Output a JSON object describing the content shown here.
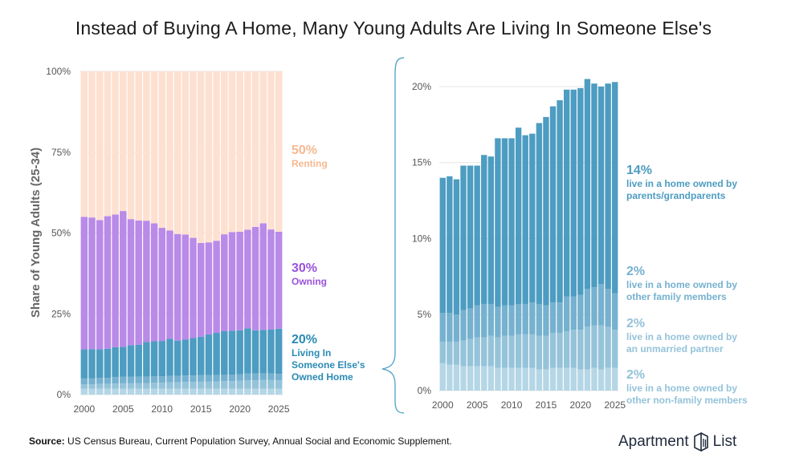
{
  "title": "Instead of Buying A Home, Many Young Adults Are Living In Someone Else's",
  "source_label": "Source:",
  "source_text": "US Census Bureau, Current Population Survey, Annual Social and Economic Supplement.",
  "brand": {
    "word1": "Apartment",
    "word2": "List"
  },
  "colors": {
    "renting": "#fde0d0",
    "owning": "#b98ae8",
    "parents": "#4d9cc1",
    "other_family": "#76b1cf",
    "partner": "#95c3da",
    "nonfamily": "#b5d6e6",
    "text_blue": "#2b8bb5",
    "text_purple": "#9a52dc",
    "text_peach": "#f6b890",
    "bracket": "#5aa6c7"
  },
  "chart_data": [
    {
      "type": "bar",
      "stacked": true,
      "ylabel": "Share of Young Adults (25-34)",
      "ylim": [
        0,
        100
      ],
      "yticks": [
        "0%",
        "25%",
        "50%",
        "75%",
        "100%"
      ],
      "xticks": [
        "2000",
        "2005",
        "2010",
        "2015",
        "2020",
        "2025"
      ],
      "categories": [
        2000,
        2001,
        2002,
        2003,
        2004,
        2005,
        2006,
        2007,
        2008,
        2009,
        2010,
        2011,
        2012,
        2013,
        2014,
        2015,
        2016,
        2017,
        2018,
        2019,
        2020,
        2021,
        2022,
        2023,
        2024,
        2025
      ],
      "series": [
        {
          "key": "nonfamily",
          "values": [
            1.8,
            1.8,
            1.8,
            1.8,
            1.8,
            1.8,
            1.8,
            1.8,
            1.8,
            1.8,
            1.8,
            1.8,
            1.8,
            1.8,
            1.8,
            1.8,
            1.8,
            1.8,
            1.8,
            1.8,
            1.8,
            1.8,
            1.8,
            1.8,
            1.8,
            1.8
          ]
        },
        {
          "key": "partner",
          "values": [
            1.4,
            1.4,
            1.5,
            1.5,
            1.6,
            1.7,
            1.7,
            1.8,
            1.8,
            1.9,
            1.9,
            2.0,
            2.0,
            2.1,
            2.1,
            2.2,
            2.2,
            2.3,
            2.4,
            2.4,
            2.5,
            2.6,
            2.6,
            2.7,
            2.7,
            2.6
          ]
        },
        {
          "key": "other_family",
          "values": [
            1.8,
            1.8,
            1.9,
            1.9,
            2.0,
            2.0,
            2.0,
            2.0,
            2.0,
            2.0,
            2.0,
            2.0,
            2.0,
            2.0,
            2.0,
            2.0,
            2.0,
            2.0,
            2.0,
            2.0,
            2.0,
            2.1,
            2.1,
            2.1,
            2.0,
            2.0
          ]
        },
        {
          "key": "parents",
          "values": [
            9.0,
            9.1,
            8.8,
            9.0,
            9.3,
            9.3,
            9.8,
            9.8,
            10.7,
            10.8,
            10.9,
            11.5,
            10.9,
            11.1,
            11.6,
            11.9,
            12.6,
            13.0,
            13.4,
            13.6,
            13.6,
            14.0,
            13.4,
            13.4,
            13.6,
            14.0
          ]
        },
        {
          "key": "owning",
          "values": [
            41.0,
            40.7,
            40.0,
            41.0,
            41.0,
            42.0,
            39.0,
            38.5,
            37.5,
            36.5,
            35.0,
            33.5,
            33.0,
            32.5,
            31.0,
            29.0,
            28.5,
            28.5,
            30.0,
            30.5,
            30.5,
            30.5,
            32.0,
            33.0,
            31.0,
            30.0
          ]
        },
        {
          "key": "renting",
          "values": [
            45.0,
            45.2,
            46.0,
            44.8,
            44.3,
            43.2,
            45.7,
            46.1,
            46.2,
            47.0,
            48.4,
            49.2,
            50.3,
            50.5,
            51.5,
            53.1,
            52.9,
            52.4,
            50.4,
            49.7,
            49.6,
            49.0,
            48.1,
            47.0,
            48.9,
            49.6
          ]
        }
      ],
      "labels": [
        {
          "pct": "50%",
          "text": [
            "Renting"
          ],
          "color": "text_peach"
        },
        {
          "pct": "30%",
          "text": [
            "Owning"
          ],
          "color": "text_purple"
        },
        {
          "pct": "20%",
          "text": [
            "Living In",
            "Someone Else's",
            "Owned Home"
          ],
          "color": "text_blue"
        }
      ]
    },
    {
      "type": "bar",
      "stacked": true,
      "ylim": [
        0,
        21
      ],
      "yticks": [
        "0%",
        "5%",
        "10%",
        "15%",
        "20%"
      ],
      "xticks": [
        "2000",
        "2005",
        "2010",
        "2015",
        "2020",
        "2025"
      ],
      "categories": [
        2000,
        2001,
        2002,
        2003,
        2004,
        2005,
        2006,
        2007,
        2008,
        2009,
        2010,
        2011,
        2012,
        2013,
        2014,
        2015,
        2016,
        2017,
        2018,
        2019,
        2020,
        2021,
        2022,
        2023,
        2024,
        2025
      ],
      "series": [
        {
          "key": "nonfamily",
          "values": [
            1.8,
            1.7,
            1.7,
            1.6,
            1.6,
            1.6,
            1.6,
            1.6,
            1.5,
            1.5,
            1.5,
            1.5,
            1.5,
            1.5,
            1.4,
            1.4,
            1.5,
            1.5,
            1.5,
            1.5,
            1.4,
            1.4,
            1.5,
            1.4,
            1.5,
            1.5
          ]
        },
        {
          "key": "partner",
          "values": [
            1.4,
            1.5,
            1.5,
            1.7,
            1.8,
            1.9,
            1.9,
            2.0,
            2.0,
            2.1,
            2.1,
            2.2,
            2.2,
            2.2,
            2.2,
            2.2,
            2.3,
            2.3,
            2.4,
            2.5,
            2.6,
            2.8,
            2.8,
            2.9,
            2.7,
            2.5
          ]
        },
        {
          "key": "other_family",
          "values": [
            1.9,
            1.9,
            1.8,
            2.0,
            2.0,
            2.1,
            2.2,
            2.1,
            2.0,
            2.0,
            2.0,
            2.0,
            2.0,
            2.1,
            2.1,
            2.0,
            2.0,
            2.0,
            2.3,
            2.2,
            2.3,
            2.5,
            2.5,
            2.7,
            2.5,
            2.4
          ]
        },
        {
          "key": "parents",
          "values": [
            8.9,
            9.0,
            8.9,
            9.5,
            9.4,
            9.2,
            9.8,
            9.7,
            11.1,
            11.0,
            11.0,
            11.6,
            11.1,
            11.1,
            11.9,
            12.4,
            12.9,
            13.3,
            13.6,
            13.6,
            13.6,
            13.8,
            13.4,
            13.0,
            13.5,
            13.9
          ]
        }
      ],
      "labels": [
        {
          "pct": "14%",
          "text": [
            "live in a home owned by",
            "parents/grandparents"
          ],
          "color": "parents"
        },
        {
          "pct": "2%",
          "text": [
            "live in a home owned by",
            "other family members"
          ],
          "color": "other_family"
        },
        {
          "pct": "2%",
          "text": [
            "live in a home owned by",
            "an unmarried partner"
          ],
          "color": "partner"
        },
        {
          "pct": "2%",
          "text": [
            "live in a home owned by",
            "other non-family members"
          ],
          "color": "partner"
        }
      ]
    }
  ]
}
